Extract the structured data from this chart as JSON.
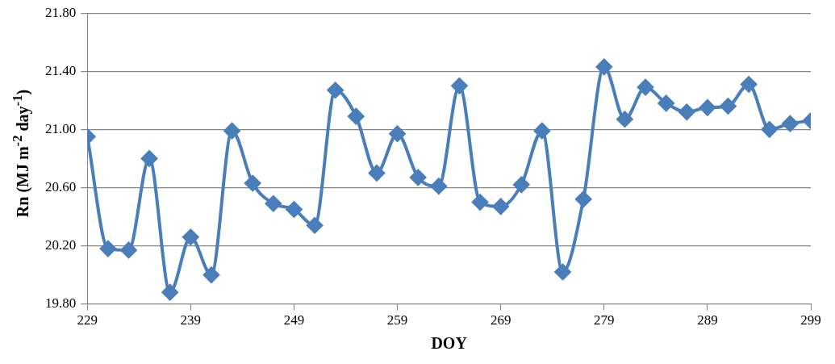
{
  "chart_data": {
    "type": "line",
    "xlabel": "DOY",
    "ylabel": "Rn (MJ m$^{-2}$ day$^{-1}$)",
    "x": [
      229,
      231,
      233,
      235,
      237,
      239,
      241,
      243,
      245,
      247,
      249,
      251,
      253,
      255,
      257,
      259,
      261,
      263,
      265,
      267,
      269,
      271,
      273,
      275,
      277,
      279,
      281,
      283,
      285,
      287,
      289,
      291,
      293,
      295,
      297,
      299
    ],
    "series": [
      {
        "color": "#4a7ebb",
        "values": [
          20.95,
          20.18,
          20.17,
          20.8,
          19.88,
          20.26,
          20.0,
          20.99,
          20.63,
          20.49,
          20.45,
          20.34,
          21.27,
          21.09,
          20.7,
          20.97,
          20.67,
          20.61,
          21.3,
          20.5,
          20.47,
          20.62,
          20.99,
          20.02,
          20.52,
          21.43,
          21.07,
          21.29,
          21.18,
          21.12,
          21.15,
          21.16,
          21.31,
          21.0,
          21.04,
          21.06
        ]
      }
    ],
    "xlim": [
      229,
      299
    ],
    "xticks": [
      229,
      239,
      249,
      259,
      269,
      279,
      289,
      299
    ],
    "ylim": [
      19.8,
      21.8
    ],
    "yticks": [
      {
        "value": 19.8,
        "label": "19.80"
      },
      {
        "value": 20.2,
        "label": "20.20"
      },
      {
        "value": 20.6,
        "label": "20.60"
      },
      {
        "value": 21.0,
        "label": "21.00"
      },
      {
        "value": 21.4,
        "label": "21.40"
      },
      {
        "value": 21.8,
        "label": "21.80"
      }
    ],
    "grid": "y",
    "legend": false,
    "marker": "diamond",
    "line_style": "solid"
  }
}
